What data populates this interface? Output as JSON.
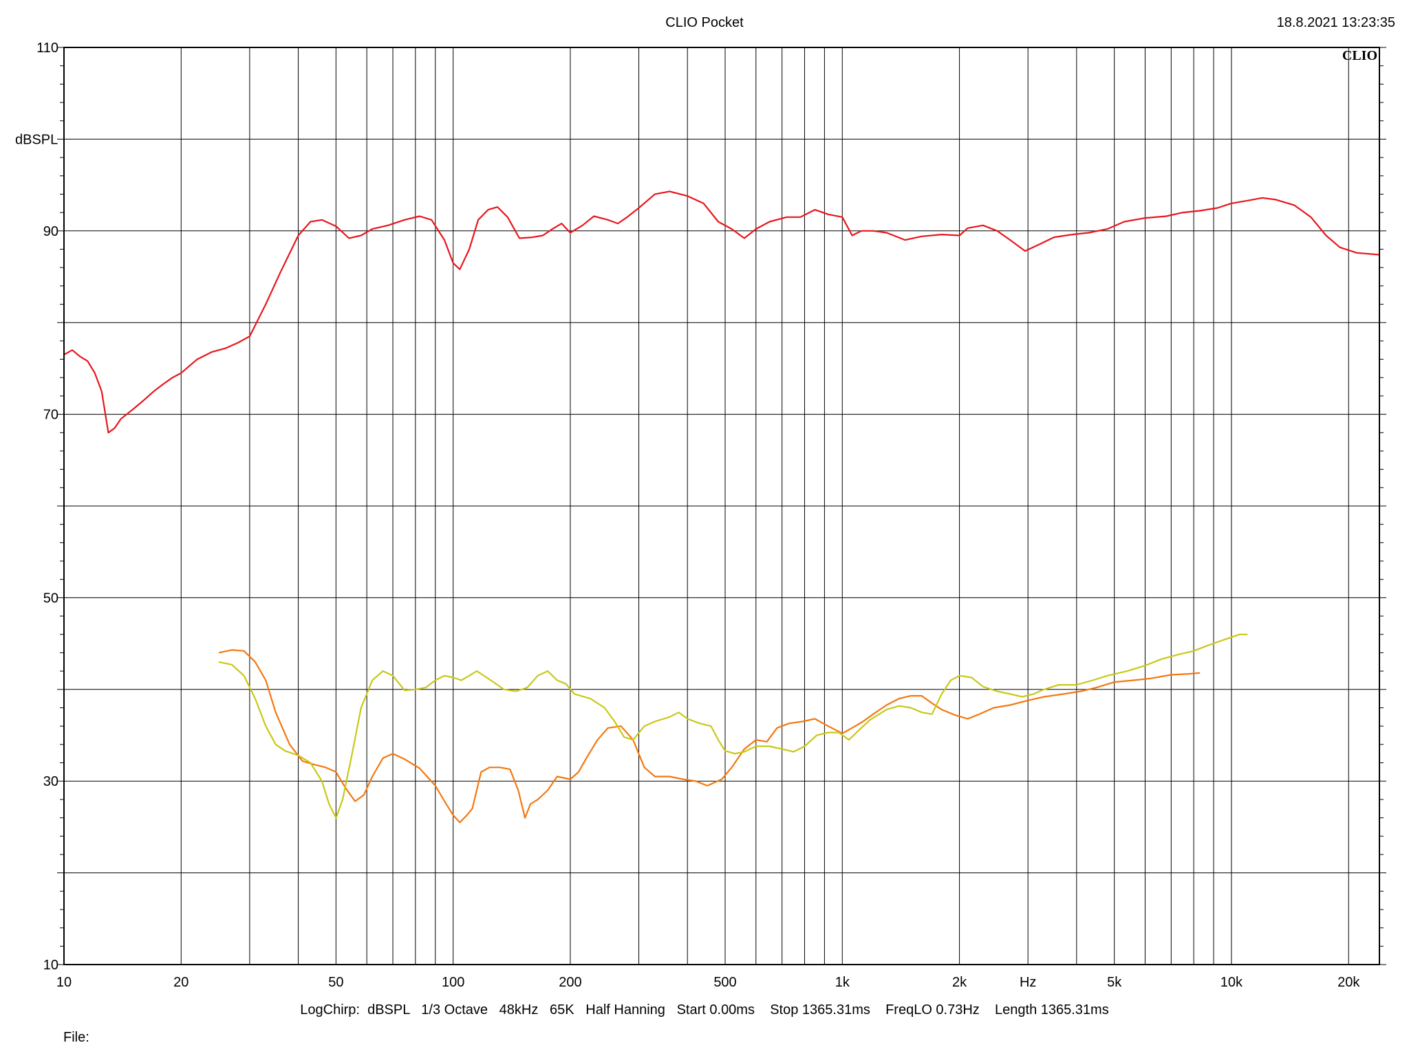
{
  "header": {
    "title": "CLIO Pocket",
    "timestamp": "18.8.2021 13:23:35"
  },
  "footer": {
    "settings": "LogChirp:  dBSPL   1/3 Octave   48kHz   65K   Half Hanning   Start 0.00ms    Stop 1365.31ms    FreqLO 0.73Hz    Length 1365.31ms",
    "file_label": "File:",
    "file_value": ""
  },
  "chart_data": {
    "type": "line",
    "title": "CLIO Pocket",
    "watermark": "CLIO",
    "xscale": "log",
    "xlim": [
      10,
      24000
    ],
    "ylim": [
      10,
      110
    ],
    "xlabel": "Hz",
    "ylabel": "dBSPL",
    "grid": true,
    "legend": "none",
    "x_ticks": [
      {
        "value": 10,
        "label": "10"
      },
      {
        "value": 20,
        "label": "20"
      },
      {
        "value": 50,
        "label": "50"
      },
      {
        "value": 100,
        "label": "100"
      },
      {
        "value": 200,
        "label": "200"
      },
      {
        "value": 500,
        "label": "500"
      },
      {
        "value": 1000,
        "label": "1k"
      },
      {
        "value": 2000,
        "label": "2k"
      },
      {
        "value": 5000,
        "label": "5k"
      },
      {
        "value": 10000,
        "label": "10k"
      },
      {
        "value": 20000,
        "label": "20k"
      }
    ],
    "y_ticks": [
      {
        "value": 110,
        "label": "110"
      },
      {
        "value": 90,
        "label": "90"
      },
      {
        "value": 70,
        "label": "70"
      },
      {
        "value": 50,
        "label": "50"
      },
      {
        "value": 30,
        "label": "30"
      },
      {
        "value": 10,
        "label": "10"
      }
    ],
    "series": [
      {
        "color": "#e8151b",
        "points": [
          [
            10,
            76.5
          ],
          [
            10.5,
            77
          ],
          [
            11,
            76.3
          ],
          [
            11.5,
            75.8
          ],
          [
            12,
            74.5
          ],
          [
            12.5,
            72.5
          ],
          [
            13,
            68
          ],
          [
            13.5,
            68.5
          ],
          [
            14,
            69.5
          ],
          [
            15,
            70.5
          ],
          [
            16,
            71.5
          ],
          [
            17,
            72.5
          ],
          [
            18,
            73.3
          ],
          [
            19,
            74
          ],
          [
            20,
            74.5
          ],
          [
            22,
            76
          ],
          [
            24,
            76.8
          ],
          [
            26,
            77.2
          ],
          [
            28,
            77.8
          ],
          [
            30,
            78.5
          ],
          [
            33,
            82
          ],
          [
            36,
            85.5
          ],
          [
            40,
            89.5
          ],
          [
            43,
            91
          ],
          [
            46,
            91.2
          ],
          [
            50,
            90.5
          ],
          [
            54,
            89.2
          ],
          [
            58,
            89.5
          ],
          [
            62,
            90.2
          ],
          [
            68,
            90.6
          ],
          [
            75,
            91.2
          ],
          [
            82,
            91.6
          ],
          [
            88,
            91.2
          ],
          [
            95,
            89
          ],
          [
            100,
            86.5
          ],
          [
            104,
            85.8
          ],
          [
            110,
            88
          ],
          [
            116,
            91.2
          ],
          [
            123,
            92.3
          ],
          [
            130,
            92.6
          ],
          [
            138,
            91.5
          ],
          [
            148,
            89.2
          ],
          [
            160,
            89.3
          ],
          [
            170,
            89.5
          ],
          [
            180,
            90.2
          ],
          [
            190,
            90.8
          ],
          [
            200,
            89.8
          ],
          [
            215,
            90.6
          ],
          [
            230,
            91.6
          ],
          [
            250,
            91.2
          ],
          [
            265,
            90.8
          ],
          [
            280,
            91.5
          ],
          [
            300,
            92.5
          ],
          [
            330,
            94
          ],
          [
            360,
            94.3
          ],
          [
            400,
            93.8
          ],
          [
            440,
            93
          ],
          [
            480,
            91
          ],
          [
            520,
            90.2
          ],
          [
            560,
            89.2
          ],
          [
            600,
            90.2
          ],
          [
            650,
            91
          ],
          [
            720,
            91.5
          ],
          [
            780,
            91.5
          ],
          [
            850,
            92.3
          ],
          [
            920,
            91.8
          ],
          [
            1000,
            91.5
          ],
          [
            1060,
            89.5
          ],
          [
            1120,
            90
          ],
          [
            1200,
            90
          ],
          [
            1300,
            89.8
          ],
          [
            1450,
            89
          ],
          [
            1600,
            89.4
          ],
          [
            1800,
            89.6
          ],
          [
            2000,
            89.5
          ],
          [
            2100,
            90.3
          ],
          [
            2300,
            90.6
          ],
          [
            2500,
            90
          ],
          [
            2700,
            89
          ],
          [
            2950,
            87.8
          ],
          [
            3200,
            88.5
          ],
          [
            3500,
            89.3
          ],
          [
            3900,
            89.6
          ],
          [
            4300,
            89.8
          ],
          [
            4800,
            90.2
          ],
          [
            5300,
            91
          ],
          [
            6000,
            91.4
          ],
          [
            6800,
            91.6
          ],
          [
            7500,
            92
          ],
          [
            8300,
            92.2
          ],
          [
            9200,
            92.5
          ],
          [
            10000,
            93
          ],
          [
            11000,
            93.3
          ],
          [
            12000,
            93.6
          ],
          [
            13000,
            93.4
          ],
          [
            14500,
            92.8
          ],
          [
            16000,
            91.5
          ],
          [
            17500,
            89.5
          ],
          [
            19000,
            88.2
          ],
          [
            21000,
            87.6
          ],
          [
            24000,
            87.4
          ]
        ]
      },
      {
        "color": "#f4770f",
        "points": [
          [
            25,
            44
          ],
          [
            27,
            44.3
          ],
          [
            29,
            44.2
          ],
          [
            31,
            43
          ],
          [
            33,
            41
          ],
          [
            35,
            37.5
          ],
          [
            38,
            34
          ],
          [
            41,
            32.2
          ],
          [
            44,
            31.8
          ],
          [
            47,
            31.5
          ],
          [
            50,
            31
          ],
          [
            53,
            29.2
          ],
          [
            56,
            27.8
          ],
          [
            59,
            28.5
          ],
          [
            62,
            30.5
          ],
          [
            66,
            32.5
          ],
          [
            70,
            33
          ],
          [
            75,
            32.4
          ],
          [
            82,
            31.4
          ],
          [
            90,
            29.5
          ],
          [
            96,
            27.5
          ],
          [
            100,
            26.3
          ],
          [
            104,
            25.5
          ],
          [
            108,
            26.2
          ],
          [
            112,
            27
          ],
          [
            118,
            31
          ],
          [
            124,
            31.5
          ],
          [
            132,
            31.5
          ],
          [
            140,
            31.3
          ],
          [
            147,
            29
          ],
          [
            153,
            26
          ],
          [
            158,
            27.5
          ],
          [
            165,
            28
          ],
          [
            175,
            29
          ],
          [
            185,
            30.5
          ],
          [
            200,
            30.2
          ],
          [
            210,
            31
          ],
          [
            220,
            32.5
          ],
          [
            235,
            34.5
          ],
          [
            250,
            35.8
          ],
          [
            270,
            36
          ],
          [
            290,
            34.5
          ],
          [
            310,
            31.5
          ],
          [
            330,
            30.5
          ],
          [
            360,
            30.5
          ],
          [
            390,
            30.2
          ],
          [
            420,
            30
          ],
          [
            450,
            29.5
          ],
          [
            490,
            30.2
          ],
          [
            520,
            31.5
          ],
          [
            560,
            33.5
          ],
          [
            600,
            34.5
          ],
          [
            640,
            34.3
          ],
          [
            680,
            35.8
          ],
          [
            730,
            36.3
          ],
          [
            790,
            36.5
          ],
          [
            850,
            36.8
          ],
          [
            920,
            36
          ],
          [
            1000,
            35.2
          ],
          [
            1060,
            35.8
          ],
          [
            1130,
            36.5
          ],
          [
            1200,
            37.3
          ],
          [
            1300,
            38.3
          ],
          [
            1400,
            39
          ],
          [
            1500,
            39.3
          ],
          [
            1600,
            39.3
          ],
          [
            1700,
            38.5
          ],
          [
            1800,
            37.8
          ],
          [
            1950,
            37.2
          ],
          [
            2100,
            36.8
          ],
          [
            2250,
            37.3
          ],
          [
            2450,
            38
          ],
          [
            2700,
            38.3
          ],
          [
            3000,
            38.8
          ],
          [
            3300,
            39.2
          ],
          [
            3700,
            39.5
          ],
          [
            4100,
            39.8
          ],
          [
            4500,
            40.2
          ],
          [
            5000,
            40.8
          ],
          [
            5600,
            41
          ],
          [
            6200,
            41.2
          ],
          [
            7000,
            41.6
          ],
          [
            7800,
            41.7
          ],
          [
            8300,
            41.8
          ]
        ]
      },
      {
        "color": "#c8c817",
        "points": [
          [
            25,
            43
          ],
          [
            27,
            42.7
          ],
          [
            29,
            41.5
          ],
          [
            31,
            39
          ],
          [
            33,
            36
          ],
          [
            35,
            34
          ],
          [
            37,
            33.3
          ],
          [
            40,
            32.8
          ],
          [
            43,
            32
          ],
          [
            46,
            30
          ],
          [
            48,
            27.5
          ],
          [
            50,
            26
          ],
          [
            52,
            28
          ],
          [
            55,
            33
          ],
          [
            58,
            38
          ],
          [
            62,
            41
          ],
          [
            66,
            42
          ],
          [
            70,
            41.5
          ],
          [
            75,
            39.9
          ],
          [
            80,
            40
          ],
          [
            85,
            40.2
          ],
          [
            90,
            41
          ],
          [
            95,
            41.5
          ],
          [
            100,
            41.3
          ],
          [
            105,
            41
          ],
          [
            110,
            41.5
          ],
          [
            115,
            42
          ],
          [
            120,
            41.5
          ],
          [
            130,
            40.5
          ],
          [
            135,
            40
          ],
          [
            145,
            39.8
          ],
          [
            155,
            40.2
          ],
          [
            165,
            41.5
          ],
          [
            175,
            42
          ],
          [
            185,
            41
          ],
          [
            195,
            40.6
          ],
          [
            205,
            39.5
          ],
          [
            225,
            39
          ],
          [
            245,
            38
          ],
          [
            260,
            36.5
          ],
          [
            275,
            34.8
          ],
          [
            290,
            34.5
          ],
          [
            310,
            36
          ],
          [
            330,
            36.5
          ],
          [
            360,
            37
          ],
          [
            380,
            37.5
          ],
          [
            400,
            36.8
          ],
          [
            430,
            36.3
          ],
          [
            460,
            36
          ],
          [
            480,
            34.5
          ],
          [
            500,
            33.3
          ],
          [
            530,
            33
          ],
          [
            560,
            33.2
          ],
          [
            600,
            33.8
          ],
          [
            650,
            33.8
          ],
          [
            700,
            33.5
          ],
          [
            750,
            33.2
          ],
          [
            800,
            33.8
          ],
          [
            860,
            35
          ],
          [
            920,
            35.3
          ],
          [
            980,
            35.3
          ],
          [
            1040,
            34.5
          ],
          [
            1100,
            35.5
          ],
          [
            1180,
            36.7
          ],
          [
            1300,
            37.8
          ],
          [
            1400,
            38.2
          ],
          [
            1500,
            38
          ],
          [
            1600,
            37.5
          ],
          [
            1700,
            37.3
          ],
          [
            1800,
            39.5
          ],
          [
            1900,
            41
          ],
          [
            2000,
            41.5
          ],
          [
            2150,
            41.3
          ],
          [
            2300,
            40.3
          ],
          [
            2500,
            39.8
          ],
          [
            2700,
            39.5
          ],
          [
            2900,
            39.2
          ],
          [
            3100,
            39.5
          ],
          [
            3300,
            40
          ],
          [
            3600,
            40.5
          ],
          [
            4000,
            40.5
          ],
          [
            4400,
            41
          ],
          [
            4800,
            41.5
          ],
          [
            5400,
            42
          ],
          [
            6000,
            42.6
          ],
          [
            6600,
            43.3
          ],
          [
            7300,
            43.8
          ],
          [
            8000,
            44.2
          ],
          [
            8700,
            44.8
          ],
          [
            9400,
            45.3
          ],
          [
            10000,
            45.7
          ],
          [
            10500,
            46
          ],
          [
            11000,
            46
          ]
        ]
      }
    ]
  }
}
